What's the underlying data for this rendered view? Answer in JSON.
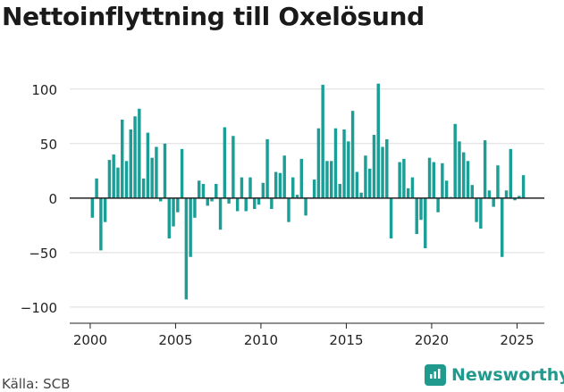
{
  "title": "Nettoinflyttning till Oxelösund",
  "source": "Källa: SCB",
  "brand": "Newsworthy",
  "colors": {
    "bar": "#1a9e96",
    "brand": "#1f9a8c",
    "grid": "#dddddd",
    "axis": "#222222"
  },
  "chart_data": {
    "type": "bar",
    "title": "Nettoinflyttning till Oxelösund",
    "xlabel": "",
    "ylabel": "",
    "ylim": [
      -105,
      108
    ],
    "xlim": [
      1998.8,
      2026.6
    ],
    "y_ticks": [
      100,
      50,
      0,
      -50,
      -100
    ],
    "y_tick_labels": [
      "100",
      "50",
      "0",
      "−50",
      "−100"
    ],
    "x_ticks": [
      2000,
      2005,
      2010,
      2015,
      2020,
      2025
    ],
    "x_tick_labels": [
      "2000",
      "2005",
      "2010",
      "2015",
      "2020",
      "2025"
    ],
    "grid": "horizontal",
    "series": [
      {
        "x": [
          2000.125,
          2000.375,
          2000.625,
          2000.875,
          2001.125,
          2001.375,
          2001.625,
          2001.875,
          2002.125,
          2002.375,
          2002.625,
          2002.875,
          2003.125,
          2003.375,
          2003.625,
          2003.875,
          2004.125,
          2004.375,
          2004.625,
          2004.875,
          2005.125,
          2005.375,
          2005.625,
          2005.875,
          2006.125,
          2006.375,
          2006.625,
          2006.875,
          2007.125,
          2007.375,
          2007.625,
          2007.875,
          2008.125,
          2008.375,
          2008.625,
          2008.875,
          2009.125,
          2009.375,
          2009.625,
          2009.875,
          2010.125,
          2010.375,
          2010.625,
          2010.875,
          2011.125,
          2011.375,
          2011.625,
          2011.875,
          2012.125,
          2012.375,
          2012.625,
          2012.875,
          2013.125,
          2013.375,
          2013.625,
          2013.875,
          2014.125,
          2014.375,
          2014.625,
          2014.875,
          2015.125,
          2015.375,
          2015.625,
          2015.875,
          2016.125,
          2016.375,
          2016.625,
          2016.875,
          2017.125,
          2017.375,
          2017.625,
          2017.875,
          2018.125,
          2018.375,
          2018.625,
          2018.875,
          2019.125,
          2019.375,
          2019.625,
          2019.875,
          2020.125,
          2020.375,
          2020.625,
          2020.875,
          2021.125,
          2021.375,
          2021.625,
          2021.875,
          2022.125,
          2022.375,
          2022.625,
          2022.875,
          2023.125,
          2023.375,
          2023.625,
          2023.875,
          2024.125,
          2024.375,
          2024.625,
          2024.875,
          2025.125,
          2025.375
        ],
        "values": [
          -18,
          18,
          -48,
          -22,
          35,
          40,
          28,
          72,
          34,
          63,
          75,
          82,
          18,
          60,
          37,
          47,
          -3,
          50,
          -37,
          -26,
          -13,
          45,
          -93,
          -54,
          -18,
          16,
          13,
          -7,
          -3,
          13,
          -29,
          65,
          -5,
          57,
          -12,
          19,
          -12,
          19,
          -10,
          -6,
          14,
          54,
          -10,
          24,
          23,
          39,
          -22,
          19,
          3,
          36,
          -16,
          0,
          17,
          64,
          104,
          34,
          34,
          64,
          13,
          63,
          52,
          80,
          24,
          5,
          39,
          27,
          58,
          105,
          47,
          54,
          -37,
          0,
          33,
          36,
          9,
          19,
          -33,
          -20,
          -46,
          37,
          33,
          -13,
          32,
          16,
          1,
          68,
          52,
          42,
          34,
          12,
          -22,
          -28,
          53,
          7,
          -8,
          30,
          -54,
          7,
          45,
          -2,
          2,
          21
        ]
      }
    ]
  }
}
